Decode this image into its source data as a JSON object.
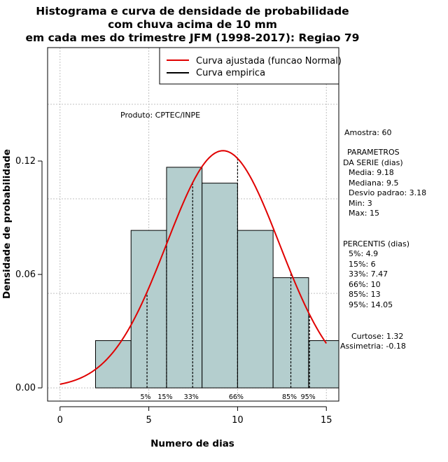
{
  "chart_data": {
    "type": "bar",
    "title_lines": [
      "Histograma e curva de densidade de probabilidade",
      "com chuva acima de 10 mm",
      "em cada mes do trimestre JFM (1998-2017): Regiao 79"
    ],
    "xlabel": "Numero de dias",
    "ylabel": "Densidade de probabilidade",
    "xlim": [
      -0.7,
      15.7
    ],
    "ylim": [
      -0.007,
      0.18
    ],
    "x_ticks": [
      0,
      5,
      10,
      15
    ],
    "y_ticks": [
      0.0,
      0.06,
      0.12
    ],
    "y_tick_labels": [
      "0.00",
      "0.06",
      "0.12"
    ],
    "grid": true,
    "legend_position": "top-right",
    "histogram": {
      "color": "#b4cece",
      "bins": [
        {
          "from": 2,
          "to": 4,
          "density": 0.025
        },
        {
          "from": 4,
          "to": 6,
          "density": 0.0833
        },
        {
          "from": 6,
          "to": 8,
          "density": 0.1167
        },
        {
          "from": 8,
          "to": 10,
          "density": 0.1083
        },
        {
          "from": 10,
          "to": 12,
          "density": 0.0833
        },
        {
          "from": 12,
          "to": 14,
          "density": 0.0583
        },
        {
          "from": 14,
          "to": 16,
          "density": 0.025
        }
      ]
    },
    "series": [
      {
        "name": "Curva ajustada (funcao Normal)",
        "color": "#e00000",
        "type": "normal",
        "mean": 9.18,
        "sd": 3.18
      },
      {
        "name": "Curva empirica",
        "color": "#000000",
        "type": "empirical"
      }
    ],
    "percentiles": [
      {
        "label": "5%",
        "x": 4.9
      },
      {
        "label": "15%",
        "x": 6
      },
      {
        "label": "33%",
        "x": 7.47
      },
      {
        "label": "66%",
        "x": 10
      },
      {
        "label": "85%",
        "x": 13
      },
      {
        "label": "95%",
        "x": 14.05
      }
    ],
    "product_label": "Produto: CPTEC/INPE",
    "stats": {
      "amostra": "Amostra: 60",
      "params_header": [
        "PARAMETROS",
        "DA SERIE (dias)"
      ],
      "params": [
        "Media: 9.18",
        "Mediana: 9.5",
        "Desvio padrao: 3.18",
        "Min: 3",
        "Max: 15"
      ],
      "percentis_header": "PERCENTIS (dias)",
      "percentis": [
        "5%: 4.9",
        "15%: 6",
        "33%: 7.47",
        "66%: 10",
        "85%: 13",
        "95%: 14.05"
      ],
      "curtose": "Curtose: 1.32",
      "assimetria": "Assimetria: -0.18"
    }
  }
}
